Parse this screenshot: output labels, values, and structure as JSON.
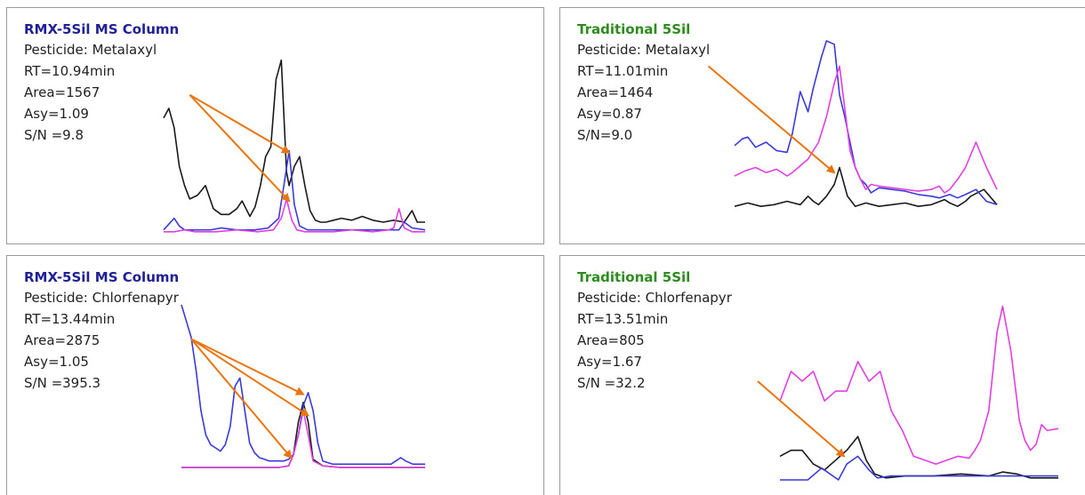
{
  "colors": {
    "rmx_title": "#1f1f96",
    "trad_title": "#2e8b1e",
    "arrow": "#e87511",
    "black_trace": "#1a1a1a",
    "blue_trace": "#3a3ad6",
    "magenta_trace": "#e040e0"
  },
  "chart_data": [
    {
      "type": "line",
      "title": "RMX-5Sil MS Column",
      "title_color": "#1f1f96",
      "pesticide": "Pesticide: Metalaxyl",
      "rt": "RT=10.94min",
      "area": "Area=1567",
      "asy": "Asy=1.09",
      "sn": "S/N =9.8",
      "xlim": [
        0,
        100
      ],
      "ylim": [
        0,
        100
      ],
      "series": [
        {
          "color": "#1a1a1a",
          "x": [
            0,
            2,
            4,
            6,
            8,
            10,
            13,
            16,
            19,
            22,
            25,
            28,
            30,
            33,
            35,
            37,
            39,
            41,
            43,
            45,
            47,
            48,
            50,
            52,
            54,
            56,
            58,
            60,
            62,
            65,
            68,
            72,
            76,
            80,
            84,
            88,
            92,
            95,
            97,
            100
          ],
          "y": [
            60,
            65,
            55,
            35,
            25,
            18,
            20,
            25,
            13,
            10,
            10,
            13,
            17,
            9,
            14,
            25,
            40,
            45,
            80,
            90,
            32,
            25,
            35,
            40,
            25,
            12,
            7,
            6,
            6,
            7,
            8,
            7,
            9,
            7,
            6,
            7,
            6,
            12,
            6,
            6
          ]
        },
        {
          "color": "#3a3ad6",
          "x": [
            0,
            2,
            4,
            6,
            8,
            12,
            18,
            22,
            28,
            35,
            40,
            44,
            46,
            48,
            50,
            52,
            55,
            60,
            65,
            70,
            75,
            80,
            85,
            88,
            90,
            92,
            95,
            100
          ],
          "y": [
            2,
            5,
            8,
            4,
            2,
            2,
            2,
            3,
            2,
            2,
            3,
            8,
            25,
            43,
            15,
            4,
            2,
            2,
            2,
            2,
            2,
            2,
            2,
            2,
            2,
            6,
            3,
            2
          ]
        },
        {
          "color": "#e040e0",
          "x": [
            0,
            4,
            8,
            12,
            20,
            28,
            36,
            42,
            45,
            47,
            49,
            51,
            54,
            58,
            65,
            72,
            80,
            86,
            88,
            90,
            92,
            95,
            100
          ],
          "y": [
            1,
            1,
            2,
            1,
            1,
            2,
            1,
            2,
            8,
            18,
            7,
            2,
            1,
            1,
            1,
            2,
            1,
            2,
            3,
            13,
            3,
            1,
            1
          ]
        }
      ],
      "arrows": [
        {
          "from": [
            10,
            72
          ],
          "to": [
            48,
            42
          ]
        },
        {
          "from": [
            10,
            72
          ],
          "to": [
            48,
            17
          ]
        }
      ]
    },
    {
      "type": "line",
      "title": "Traditional 5Sil",
      "title_color": "#2e8b1e",
      "pesticide": "Pesticide: Metalaxyl",
      "rt": "RT=11.01min",
      "area": "Area=1464",
      "asy": "Asy=0.87",
      "sn": "S/N=9.0",
      "xlim": [
        0,
        100
      ],
      "ylim": [
        0,
        100
      ],
      "series": [
        {
          "color": "#1a1a1a",
          "x": [
            0,
            5,
            10,
            15,
            20,
            25,
            28,
            30,
            32,
            35,
            38,
            40,
            43,
            46,
            50,
            55,
            60,
            65,
            70,
            75,
            80,
            82,
            85,
            88,
            90,
            95,
            100
          ],
          "y": [
            2,
            4,
            2,
            3,
            5,
            3,
            8,
            5,
            3,
            8,
            15,
            25,
            8,
            2,
            4,
            2,
            3,
            4,
            2,
            3,
            6,
            4,
            2,
            5,
            8,
            12,
            3
          ]
        },
        {
          "color": "#3a3ad6",
          "x": [
            0,
            3,
            5,
            8,
            12,
            16,
            20,
            22,
            25,
            28,
            30,
            33,
            35,
            38,
            40,
            42,
            44,
            46,
            48,
            50,
            52,
            55,
            60,
            65,
            70,
            75,
            78,
            80,
            82,
            85,
            88,
            92,
            96,
            100
          ],
          "y": [
            38,
            42,
            43,
            37,
            40,
            35,
            34,
            45,
            70,
            58,
            72,
            90,
            100,
            98,
            68,
            55,
            40,
            25,
            18,
            15,
            10,
            13,
            12,
            11,
            9,
            8,
            7,
            8,
            9,
            7,
            9,
            12,
            5,
            3
          ]
        },
        {
          "color": "#e040e0",
          "x": [
            0,
            4,
            8,
            12,
            16,
            20,
            22,
            25,
            28,
            30,
            32,
            35,
            38,
            40,
            42,
            44,
            46,
            48,
            50,
            52,
            55,
            60,
            65,
            70,
            75,
            78,
            80,
            82,
            85,
            88,
            92,
            96,
            100
          ],
          "y": [
            20,
            23,
            25,
            22,
            24,
            20,
            22,
            26,
            30,
            35,
            40,
            55,
            75,
            85,
            60,
            35,
            25,
            18,
            12,
            15,
            14,
            13,
            12,
            11,
            12,
            14,
            10,
            12,
            18,
            25,
            40,
            25,
            12
          ]
        }
      ],
      "arrows": [
        {
          "from": [
            -10,
            85
          ],
          "to": [
            38,
            22
          ]
        }
      ]
    },
    {
      "type": "line",
      "title": "RMX-5Sil MS Column",
      "title_color": "#1f1f96",
      "pesticide": "Pesticide: Chlorfenapyr",
      "rt": "RT=13.44min",
      "area": "Area=2875",
      "asy": "Asy=1.05",
      "sn": "S/N =395.3",
      "xlim": [
        0,
        100
      ],
      "ylim": [
        0,
        100
      ],
      "series": [
        {
          "color": "#1a1a1a",
          "x": [
            0,
            10,
            20,
            30,
            40,
            44,
            46,
            48,
            50,
            52,
            54,
            58,
            65,
            75,
            85,
            92,
            100
          ],
          "y": [
            0,
            0,
            0,
            0,
            0,
            1,
            8,
            28,
            40,
            28,
            5,
            1,
            0,
            0,
            0,
            0,
            0
          ]
        },
        {
          "color": "#3a3ad6",
          "x": [
            0,
            2,
            4,
            6,
            8,
            10,
            12,
            14,
            16,
            18,
            20,
            22,
            24,
            26,
            28,
            30,
            32,
            34,
            36,
            38,
            40,
            42,
            44,
            46,
            48,
            50,
            52,
            54,
            56,
            58,
            62,
            66,
            70,
            74,
            78,
            82,
            86,
            88,
            90,
            92,
            95,
            100
          ],
          "y": [
            100,
            90,
            80,
            60,
            35,
            20,
            14,
            12,
            10,
            14,
            25,
            50,
            55,
            35,
            15,
            9,
            6,
            5,
            4,
            4,
            4,
            4,
            5,
            8,
            20,
            38,
            46,
            35,
            15,
            4,
            2,
            2,
            2,
            2,
            2,
            2,
            2,
            4,
            6,
            4,
            2,
            2
          ]
        },
        {
          "color": "#e040e0",
          "x": [
            0,
            10,
            20,
            30,
            40,
            44,
            46,
            48,
            50,
            52,
            54,
            58,
            65,
            75,
            85,
            92,
            100
          ],
          "y": [
            0,
            0,
            0,
            0,
            0,
            1,
            8,
            20,
            35,
            20,
            4,
            1,
            0,
            0,
            0,
            0,
            0
          ]
        }
      ],
      "arrows": [
        {
          "from": [
            4,
            79
          ],
          "to": [
            50,
            45
          ]
        },
        {
          "from": [
            4,
            79
          ],
          "to": [
            52,
            32
          ]
        },
        {
          "from": [
            4,
            79
          ],
          "to": [
            45,
            6
          ]
        }
      ]
    },
    {
      "type": "line",
      "title": "Traditional 5Sil",
      "title_color": "#2e8b1e",
      "pesticide": "Pesticide: Chlorfenapyr",
      "rt": "RT=13.51min",
      "area": "Area=805",
      "asy": "Asy=1.67",
      "sn": "S/N =32.2",
      "xlim": [
        0,
        100
      ],
      "ylim": [
        0,
        100
      ],
      "series": [
        {
          "color": "#1a1a1a",
          "x": [
            0,
            4,
            8,
            12,
            16,
            20,
            24,
            28,
            31,
            34,
            38,
            45,
            55,
            65,
            75,
            80,
            85,
            90,
            100
          ],
          "y": [
            12,
            15,
            15,
            8,
            5,
            10,
            15,
            22,
            10,
            3,
            1,
            2,
            2,
            3,
            2,
            4,
            3,
            1,
            1
          ]
        },
        {
          "color": "#3a3ad6",
          "x": [
            0,
            5,
            10,
            15,
            18,
            21,
            24,
            28,
            32,
            35,
            40,
            50,
            60,
            70,
            80,
            90,
            100
          ],
          "y": [
            0,
            0,
            0,
            6,
            3,
            0,
            8,
            12,
            5,
            1,
            2,
            2,
            2,
            2,
            2,
            2,
            2
          ]
        },
        {
          "color": "#e040e0",
          "x": [
            0,
            4,
            8,
            12,
            16,
            20,
            24,
            28,
            32,
            36,
            40,
            44,
            48,
            52,
            56,
            60,
            64,
            68,
            70,
            72,
            75,
            78,
            80,
            83,
            86,
            88,
            90,
            92,
            94,
            96,
            100
          ],
          "y": [
            40,
            55,
            50,
            55,
            40,
            45,
            45,
            60,
            50,
            55,
            35,
            25,
            12,
            10,
            8,
            10,
            12,
            11,
            15,
            20,
            35,
            75,
            88,
            65,
            30,
            20,
            15,
            18,
            28,
            25,
            26
          ]
        }
      ],
      "arrows": [
        {
          "from": [
            -8,
            50
          ],
          "to": [
            23,
            12
          ]
        }
      ]
    }
  ]
}
